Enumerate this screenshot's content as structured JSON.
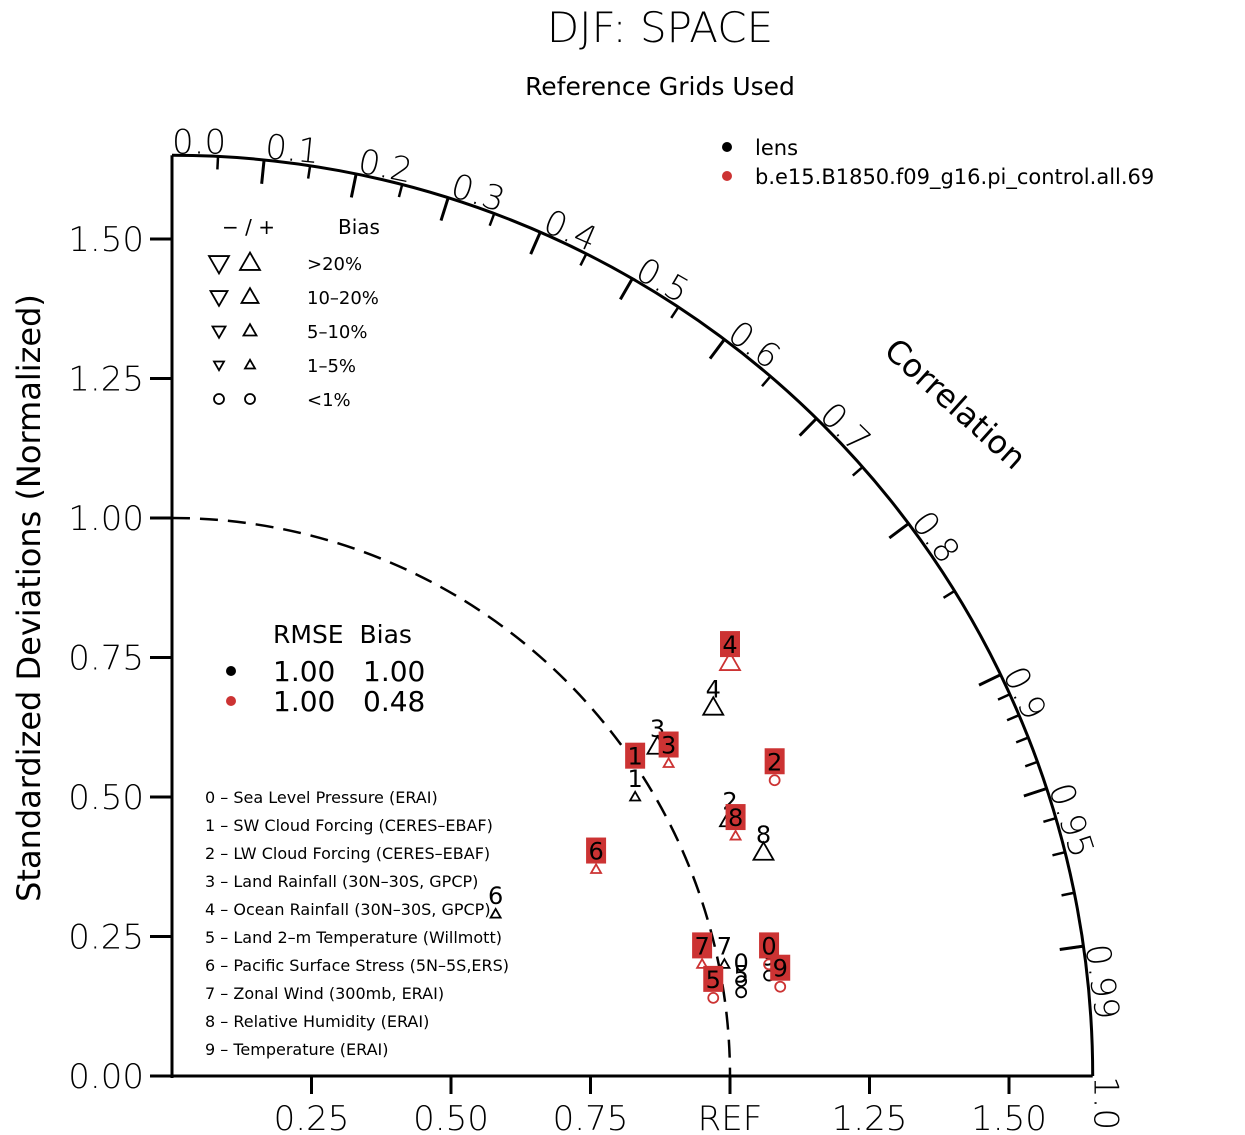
{
  "chart_data": {
    "type": "taylor",
    "title": "DJF: SPACE",
    "subtitle": "Reference Grids Used",
    "ylabel": "Standardized Deviations (Normalized)",
    "corr_label": "Correlation",
    "ref_label": "REF",
    "ylim": [
      0,
      1.65
    ],
    "y_ticks": [
      "0.00",
      "0.25",
      "0.50",
      "0.75",
      "1.00",
      "1.25",
      "1.50"
    ],
    "x_ticks": [
      "0.25",
      "0.50",
      "0.75",
      "1.25",
      "1.50"
    ],
    "corr_ticks": [
      "0.0",
      "0.1",
      "0.2",
      "0.3",
      "0.4",
      "0.5",
      "0.6",
      "0.7",
      "0.8",
      "0.9",
      "0.95",
      "0.99",
      "1.0"
    ],
    "colors": {
      "lens": "#000000",
      "pi_control": "#cc3333"
    },
    "legend_cases": [
      {
        "name": "lens",
        "color": "#000000"
      },
      {
        "name": "b.e15.B1850.f09_g16.pi_control.all.69",
        "color": "#cc3333"
      }
    ],
    "bias_legend": {
      "header_signs": "−  /  +",
      "header_label": "Bias",
      "rows": [
        ">20%",
        "10–20%",
        "5–10%",
        "1–5%",
        "<1%"
      ]
    },
    "rmse_legend": {
      "header": "RMSE  Bias",
      "rows": [
        {
          "rmse": "1.00",
          "bias": "1.00",
          "color": "#000000"
        },
        {
          "rmse": "1.00",
          "bias": "0.48",
          "color": "#cc3333"
        }
      ]
    },
    "variables": [
      "0 – Sea Level Pressure (ERAI)",
      "1 – SW Cloud Forcing (CERES–EBAF)",
      "2 – LW Cloud Forcing (CERES–EBAF)",
      "3 – Land Rainfall (30N–30S, GPCP)",
      "4 – Ocean Rainfall (30N–30S, GPCP)",
      "5 – Land 2–m Temperature (Willmott)",
      "6 – Pacific Surface Stress (5N–5S,ERS)",
      "7 – Zonal Wind (300mb, ERAI)",
      "8 – Relative Humidity (ERAI)",
      "9 – Temperature (ERAI)"
    ],
    "series": [
      {
        "name": "lens",
        "color": "#000000",
        "points": [
          {
            "id": "0",
            "x": 1.02,
            "y": 0.17,
            "marker": "circle"
          },
          {
            "id": "1",
            "x": 0.83,
            "y": 0.5,
            "marker": "up-small"
          },
          {
            "id": "2",
            "x": 1.0,
            "y": 0.46,
            "marker": "up"
          },
          {
            "id": "3",
            "x": 0.87,
            "y": 0.59,
            "marker": "up"
          },
          {
            "id": "4",
            "x": 0.97,
            "y": 0.66,
            "marker": "up"
          },
          {
            "id": "5",
            "x": 1.02,
            "y": 0.15,
            "marker": "circle"
          },
          {
            "id": "6",
            "x": 0.58,
            "y": 0.29,
            "marker": "up-small"
          },
          {
            "id": "7",
            "x": 0.99,
            "y": 0.2,
            "marker": "up-small"
          },
          {
            "id": "8",
            "x": 1.06,
            "y": 0.4,
            "marker": "up"
          },
          {
            "id": "9",
            "x": 1.07,
            "y": 0.18,
            "marker": "circle"
          }
        ]
      },
      {
        "name": "b.e15.B1850.f09_g16.pi_control.all.69",
        "color": "#cc3333",
        "points": [
          {
            "id": "0",
            "x": 1.07,
            "y": 0.2,
            "marker": "circle"
          },
          {
            "id": "1",
            "x": 0.83,
            "y": 0.54,
            "marker": "none"
          },
          {
            "id": "2",
            "x": 1.08,
            "y": 0.53,
            "marker": "circle"
          },
          {
            "id": "3",
            "x": 0.89,
            "y": 0.56,
            "marker": "up-small"
          },
          {
            "id": "4",
            "x": 1.0,
            "y": 0.74,
            "marker": "up"
          },
          {
            "id": "5",
            "x": 0.97,
            "y": 0.14,
            "marker": "circle"
          },
          {
            "id": "6",
            "x": 0.76,
            "y": 0.37,
            "marker": "up-small"
          },
          {
            "id": "7",
            "x": 0.95,
            "y": 0.2,
            "marker": "up-small"
          },
          {
            "id": "8",
            "x": 1.01,
            "y": 0.43,
            "marker": "up-small"
          },
          {
            "id": "9",
            "x": 1.09,
            "y": 0.16,
            "marker": "circle"
          }
        ]
      }
    ]
  }
}
